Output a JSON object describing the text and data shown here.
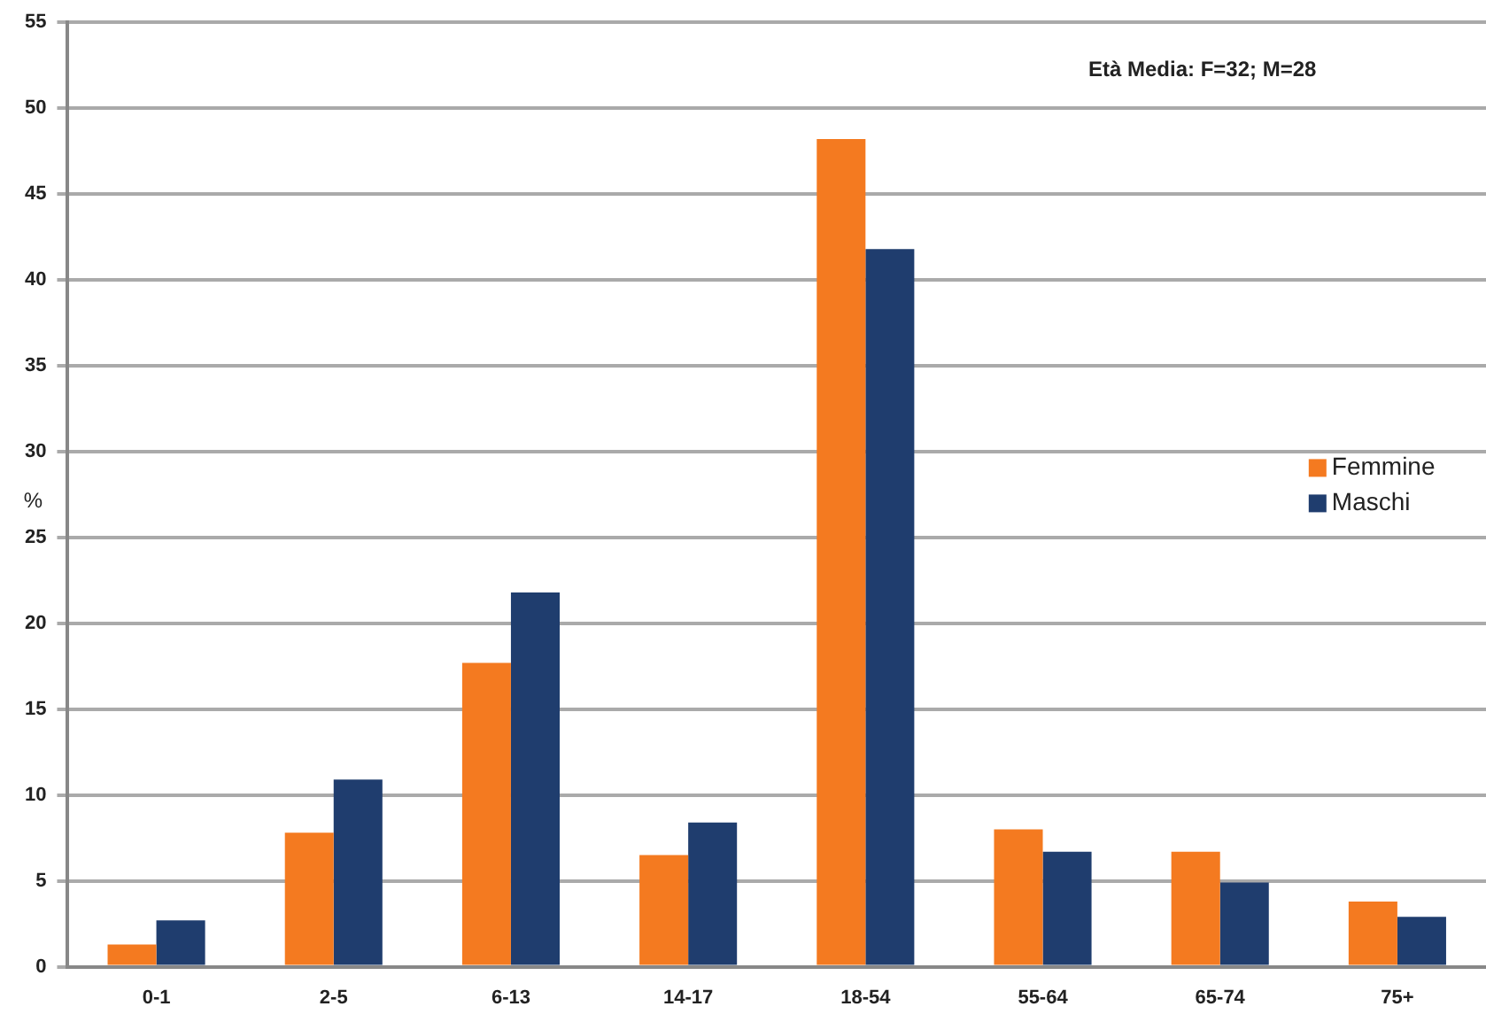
{
  "chart_data": {
    "type": "bar",
    "ylabel": "%",
    "categories": [
      "0-1",
      "2-5",
      "6-13",
      "14-17",
      "18-54",
      "55-64",
      "65-74",
      "75+"
    ],
    "series": [
      {
        "name": "Femmine",
        "color": "#f47a20",
        "values": [
          1.3,
          7.8,
          17.7,
          6.5,
          48.2,
          8,
          6.7,
          3.8
        ]
      },
      {
        "name": "Maschi",
        "color": "#1f3d6e",
        "values": [
          2.7,
          10.9,
          21.8,
          8.4,
          41.8,
          6.7,
          4.9,
          2.9
        ]
      }
    ],
    "ylim": [
      0,
      55
    ],
    "yticks": [
      0,
      5,
      10,
      15,
      20,
      25,
      30,
      35,
      40,
      45,
      50,
      55
    ],
    "grid": "y",
    "legend": "right",
    "annotations": [
      "Età Media: F=32; M=28"
    ]
  }
}
